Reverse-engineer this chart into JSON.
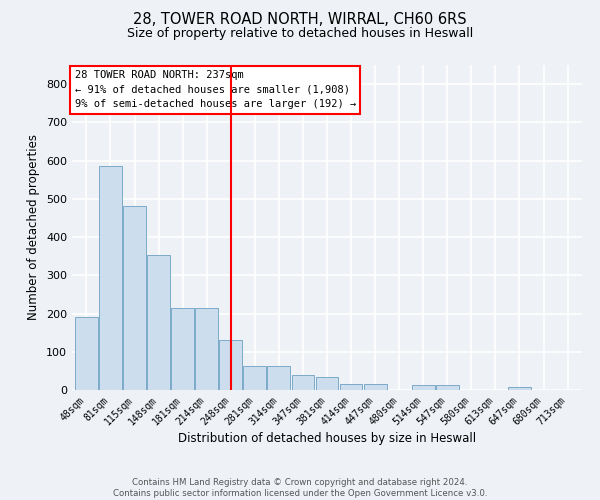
{
  "title_line1": "28, TOWER ROAD NORTH, WIRRAL, CH60 6RS",
  "title_line2": "Size of property relative to detached houses in Heswall",
  "xlabel": "Distribution of detached houses by size in Heswall",
  "ylabel": "Number of detached properties",
  "categories": [
    "48sqm",
    "81sqm",
    "115sqm",
    "148sqm",
    "181sqm",
    "214sqm",
    "248sqm",
    "281sqm",
    "314sqm",
    "347sqm",
    "381sqm",
    "414sqm",
    "447sqm",
    "480sqm",
    "514sqm",
    "547sqm",
    "580sqm",
    "613sqm",
    "647sqm",
    "680sqm",
    "713sqm"
  ],
  "values": [
    192,
    585,
    480,
    352,
    215,
    215,
    130,
    63,
    63,
    40,
    33,
    15,
    15,
    0,
    12,
    12,
    0,
    0,
    8,
    0,
    0
  ],
  "bar_color": "#ccdded",
  "bar_edge_color": "#7aaac8",
  "vline_x": 6.0,
  "vline_color": "red",
  "annotation_text": "28 TOWER ROAD NORTH: 237sqm\n← 91% of detached houses are smaller (1,908)\n9% of semi-detached houses are larger (192) →",
  "annotation_box_color": "white",
  "annotation_box_edge": "red",
  "ylim": [
    0,
    850
  ],
  "yticks": [
    0,
    100,
    200,
    300,
    400,
    500,
    600,
    700,
    800
  ],
  "footer_line1": "Contains HM Land Registry data © Crown copyright and database right 2024.",
  "footer_line2": "Contains public sector information licensed under the Open Government Licence v3.0.",
  "bg_color": "#eef2f7",
  "grid_color": "white"
}
